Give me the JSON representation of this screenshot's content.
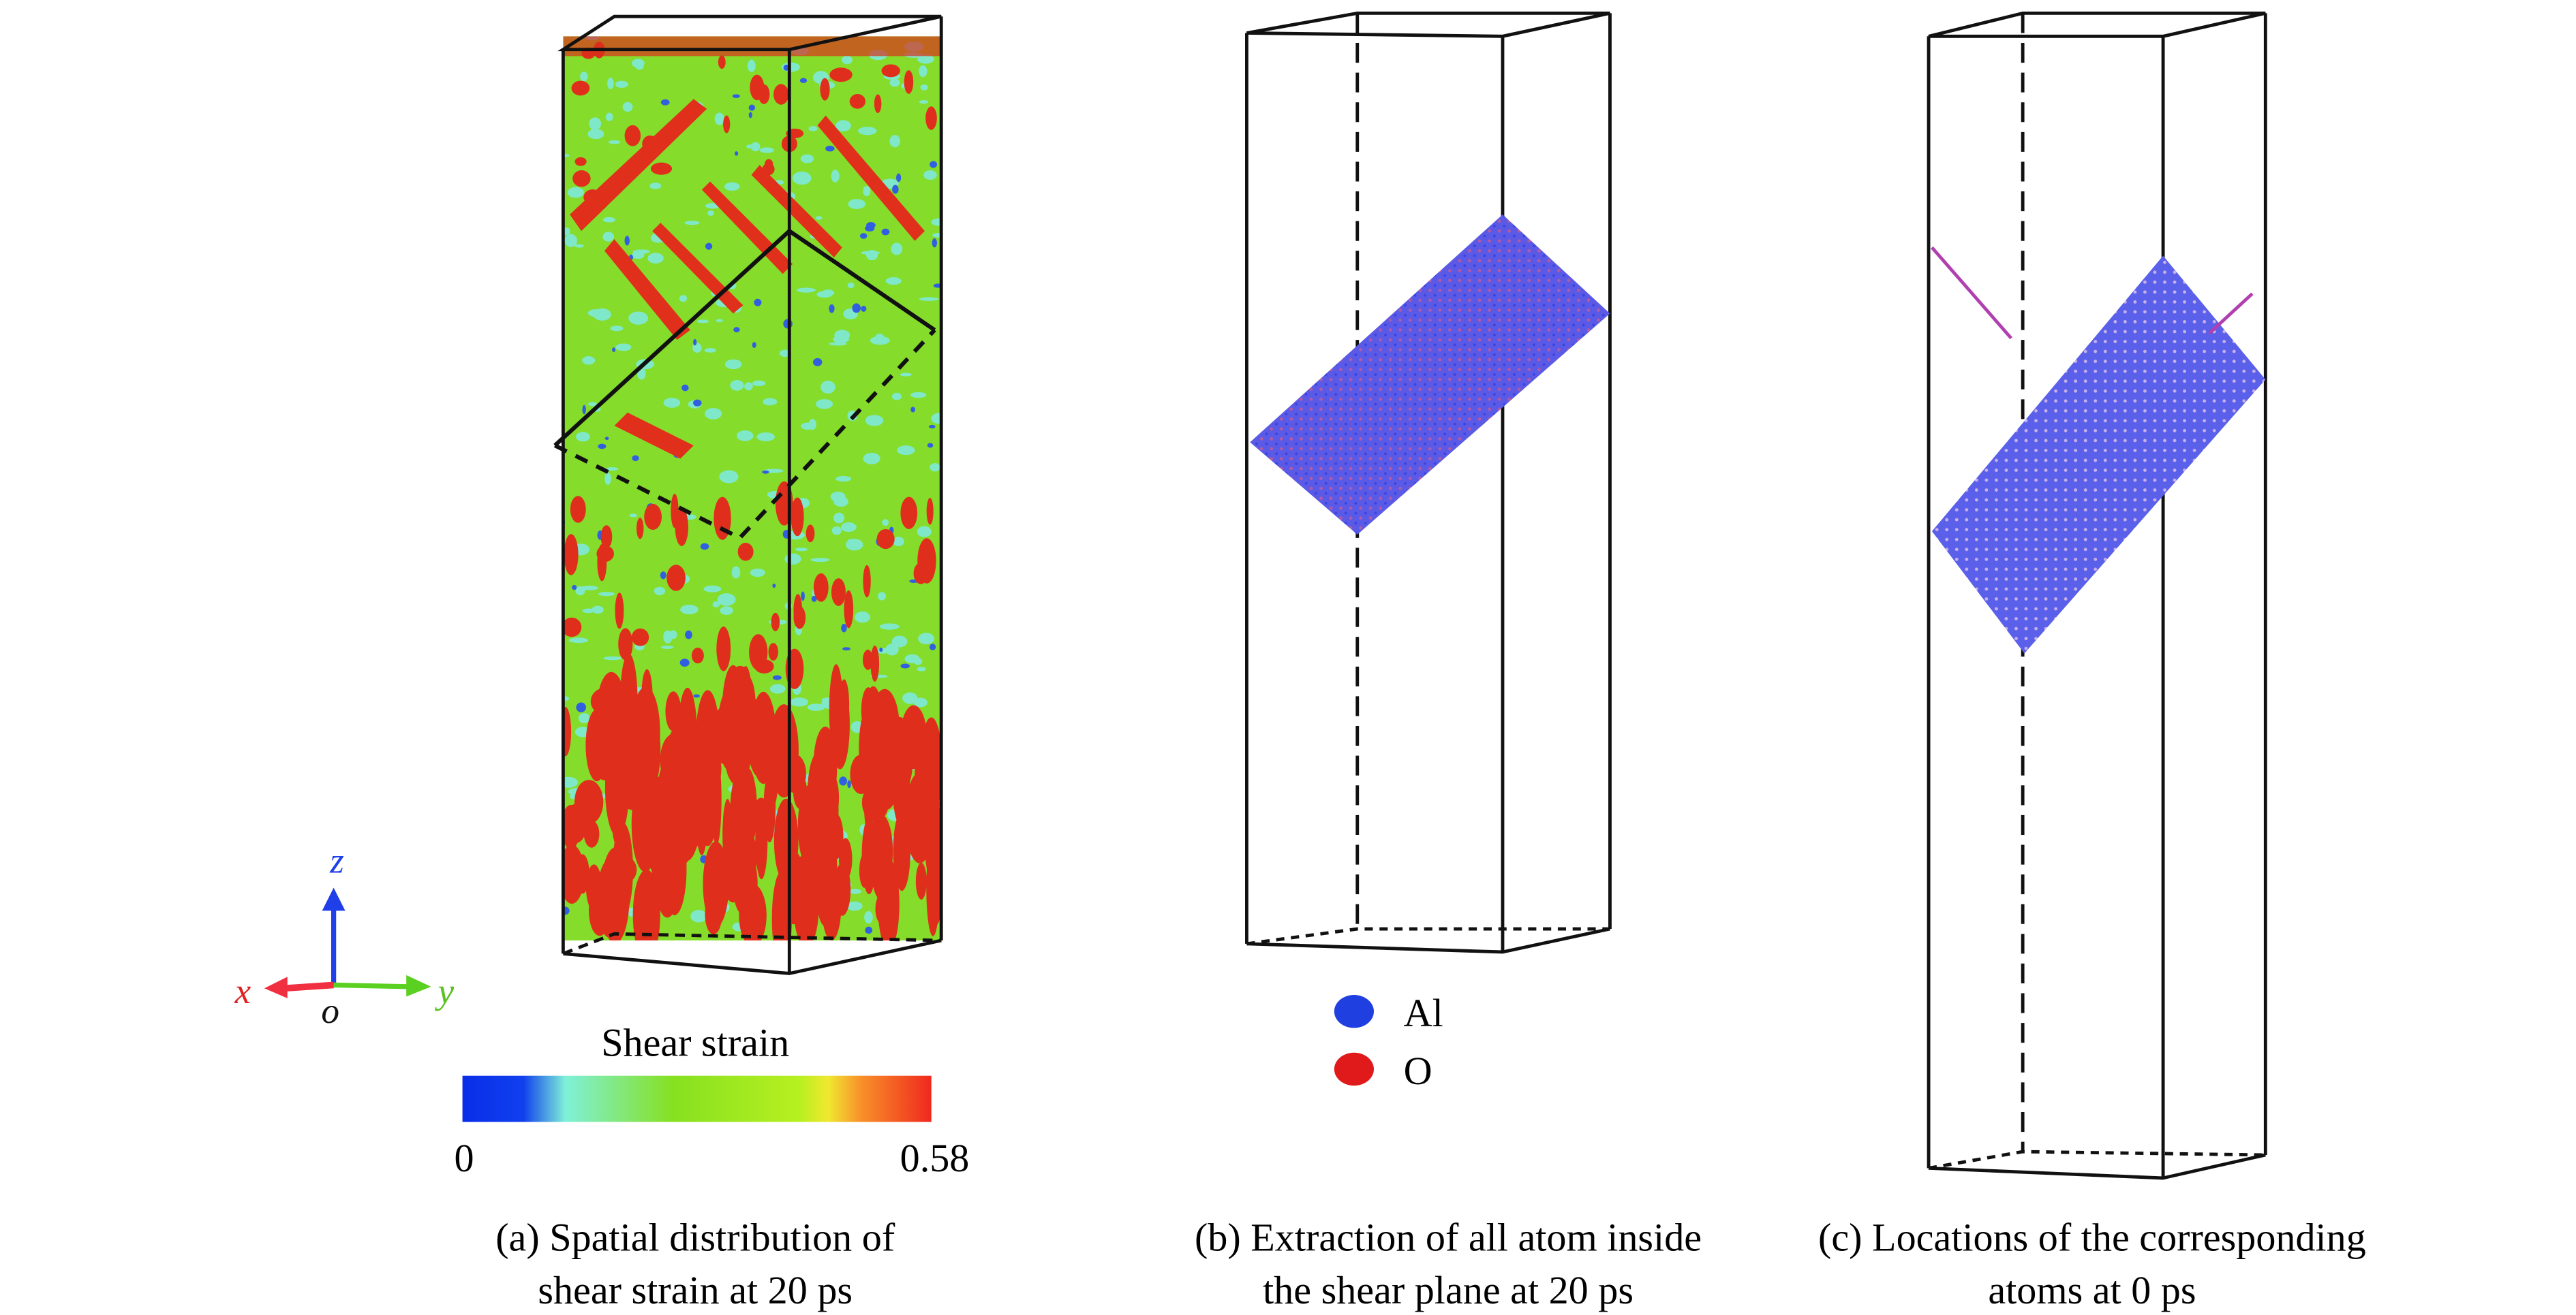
{
  "panel_a": {
    "axes": {
      "z": "z",
      "x": "x",
      "y": "y",
      "origin": "o"
    },
    "colorbar": {
      "title": "Shear strain",
      "min_label": "0",
      "max_label": "0.58",
      "min": 0,
      "max": 0.58
    },
    "caption_line1": "(a) Spatial distribution of",
    "caption_line2": "shear strain at 20 ps"
  },
  "panel_b": {
    "legend": [
      {
        "label": "Al",
        "color": "#1f3fe0"
      },
      {
        "label": "O",
        "color": "#e01a1a"
      }
    ],
    "caption_line1": "(b) Extraction of all atom inside",
    "caption_line2": "the shear plane at 20 ps"
  },
  "panel_c": {
    "caption_line1": "(c) Locations of the corresponding",
    "caption_line2": "atoms at 0 ps"
  },
  "colors": {
    "strain_low": "#0a2de8",
    "strain_mid": "#7fe010",
    "strain_high": "#e8281a",
    "atoms": "#5a5ae8"
  }
}
